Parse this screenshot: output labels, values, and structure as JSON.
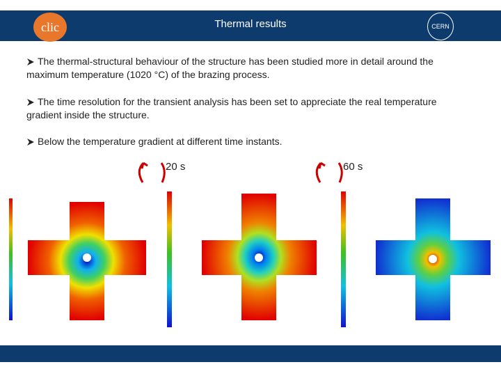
{
  "header": {
    "title": "Thermal results",
    "logo_left": "clic",
    "logo_right": "CERN"
  },
  "bullets": [
    "The thermal-structural behaviour of the structure has been studied more in detail around the maximum temperature (1020 °C) of the brazing process.",
    "The time resolution for the transient analysis has been set to appreciate the real temperature gradient inside the structure.",
    "Below the temperature gradient at different time instants."
  ],
  "time_labels": [
    "20 s",
    "60 s"
  ]
}
